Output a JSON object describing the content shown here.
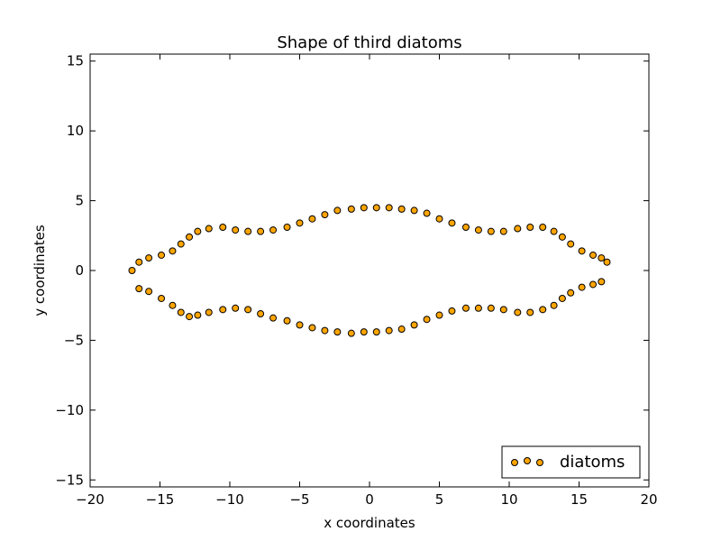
{
  "chart_data": {
    "type": "scatter",
    "title": "Shape of third diatoms",
    "xlabel": "x coordinates",
    "ylabel": "y coordinates",
    "xlim": [
      -20,
      20
    ],
    "ylim": [
      -15.5,
      15.5
    ],
    "xticks": [
      -20,
      -15,
      -10,
      -5,
      0,
      5,
      10,
      15,
      20
    ],
    "yticks": [
      -15,
      -10,
      -5,
      0,
      5,
      10,
      15
    ],
    "xtick_labels": [
      "−20",
      "−15",
      "−10",
      "−5",
      "0",
      "5",
      "10",
      "15",
      "20"
    ],
    "ytick_labels": [
      "−15",
      "−10",
      "−5",
      "0",
      "5",
      "10",
      "15"
    ],
    "grid": false,
    "legend": {
      "position": "lower-right",
      "entries": [
        "diatoms"
      ]
    },
    "series": [
      {
        "name": "diatoms",
        "color": "#ffa500",
        "edgecolor": "#000000",
        "x": [
          -17.0,
          -16.5,
          -15.8,
          -14.9,
          -14.1,
          -13.5,
          -12.9,
          -12.3,
          -11.5,
          -10.5,
          -9.6,
          -8.7,
          -7.8,
          -6.9,
          -5.9,
          -5.0,
          -4.1,
          -3.2,
          -2.3,
          -1.3,
          -0.4,
          0.5,
          1.4,
          2.3,
          3.2,
          4.1,
          5.0,
          5.9,
          6.9,
          7.8,
          8.7,
          9.6,
          10.6,
          11.5,
          12.4,
          13.2,
          13.8,
          14.4,
          15.2,
          16.0,
          16.6,
          17.0,
          16.6,
          16.0,
          15.2,
          14.4,
          13.8,
          13.2,
          12.4,
          11.5,
          10.6,
          9.6,
          8.7,
          7.8,
          6.9,
          5.9,
          5.0,
          4.1,
          3.2,
          2.3,
          1.4,
          0.5,
          -0.4,
          -1.3,
          -2.3,
          -3.2,
          -4.1,
          -5.0,
          -5.9,
          -6.9,
          -7.8,
          -8.7,
          -9.6,
          -10.5,
          -11.5,
          -12.3,
          -12.9,
          -13.5,
          -14.1,
          -14.9,
          -15.8,
          -16.5
        ],
        "y": [
          0.0,
          0.6,
          0.9,
          1.1,
          1.4,
          1.9,
          2.4,
          2.8,
          3.0,
          3.1,
          2.9,
          2.8,
          2.8,
          2.9,
          3.1,
          3.4,
          3.7,
          4.0,
          4.3,
          4.4,
          4.5,
          4.5,
          4.5,
          4.4,
          4.3,
          4.1,
          3.7,
          3.4,
          3.1,
          2.9,
          2.8,
          2.8,
          3.0,
          3.1,
          3.1,
          2.8,
          2.4,
          1.9,
          1.4,
          1.1,
          0.9,
          0.6,
          -0.8,
          -1.0,
          -1.2,
          -1.6,
          -2.0,
          -2.5,
          -2.8,
          -3.0,
          -3.0,
          -2.8,
          -2.7,
          -2.7,
          -2.7,
          -2.9,
          -3.2,
          -3.5,
          -3.9,
          -4.2,
          -4.3,
          -4.4,
          -4.4,
          -4.5,
          -4.4,
          -4.3,
          -4.1,
          -3.9,
          -3.6,
          -3.4,
          -3.1,
          -2.8,
          -2.7,
          -2.8,
          -3.0,
          -3.2,
          -3.3,
          -3.0,
          -2.5,
          -2.0,
          -1.5,
          -1.3
        ]
      }
    ]
  }
}
